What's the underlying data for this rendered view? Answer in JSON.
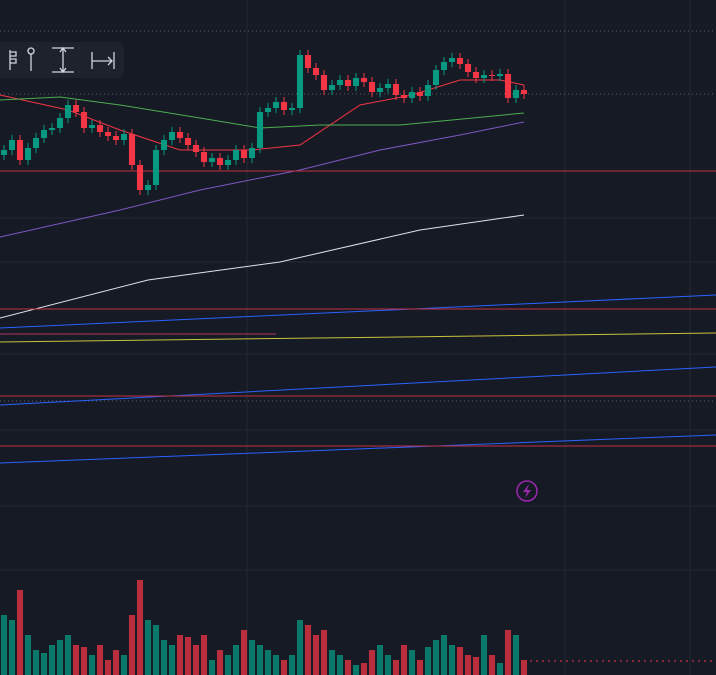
{
  "chart_data": {
    "type": "candlestick",
    "ylim": [
      0,
      675
    ],
    "xlim": [
      -0.5,
      89
    ],
    "up_color": "#089981",
    "down_color": "#f23645",
    "open": [
      520,
      525,
      535,
      515,
      527,
      537,
      545,
      547,
      557,
      570,
      563,
      547,
      550,
      543,
      539,
      535,
      541,
      510,
      485,
      490,
      525,
      535,
      543,
      537,
      530,
      523,
      513,
      517,
      510,
      515,
      525,
      517,
      527,
      563,
      567,
      573,
      565,
      567,
      620,
      607,
      600,
      585,
      590,
      595,
      589,
      597,
      593,
      583,
      587,
      591,
      580,
      577,
      583,
      579,
      590,
      605,
      613,
      617,
      611,
      603,
      597,
      600,
      599,
      601,
      577,
      585
    ],
    "high": [
      530,
      540,
      540,
      532,
      542,
      550,
      552,
      562,
      575,
      575,
      568,
      555,
      555,
      548,
      544,
      546,
      546,
      515,
      495,
      530,
      540,
      548,
      548,
      542,
      535,
      528,
      522,
      522,
      520,
      530,
      530,
      532,
      568,
      572,
      578,
      578,
      572,
      625,
      625,
      612,
      605,
      595,
      600,
      600,
      602,
      602,
      598,
      592,
      596,
      596,
      585,
      588,
      588,
      595,
      610,
      618,
      622,
      622,
      616,
      608,
      605,
      605,
      606,
      606,
      590,
      590
    ],
    "low": [
      515,
      520,
      510,
      510,
      522,
      532,
      540,
      542,
      552,
      558,
      542,
      542,
      538,
      534,
      530,
      530,
      505,
      480,
      480,
      485,
      520,
      530,
      532,
      525,
      518,
      508,
      508,
      505,
      505,
      510,
      512,
      512,
      522,
      558,
      562,
      560,
      560,
      562,
      602,
      595,
      580,
      580,
      585,
      584,
      584,
      588,
      578,
      578,
      582,
      575,
      572,
      572,
      574,
      574,
      585,
      600,
      608,
      606,
      598,
      592,
      592,
      594,
      594,
      572,
      572,
      576
    ],
    "close": [
      525,
      535,
      515,
      527,
      537,
      545,
      547,
      557,
      570,
      563,
      547,
      550,
      543,
      539,
      535,
      541,
      510,
      485,
      490,
      525,
      535,
      543,
      537,
      530,
      523,
      513,
      517,
      510,
      515,
      525,
      517,
      527,
      563,
      567,
      573,
      565,
      567,
      620,
      607,
      600,
      585,
      590,
      595,
      589,
      597,
      593,
      583,
      587,
      591,
      580,
      577,
      583,
      579,
      590,
      605,
      613,
      617,
      611,
      603,
      597,
      600,
      599,
      601,
      577,
      585,
      581
    ],
    "volume": [
      60,
      55,
      85,
      40,
      25,
      22,
      30,
      35,
      40,
      30,
      28,
      20,
      30,
      15,
      25,
      20,
      60,
      95,
      55,
      50,
      35,
      30,
      40,
      38,
      30,
      40,
      15,
      25,
      20,
      30,
      45,
      35,
      30,
      25,
      20,
      15,
      20,
      55,
      50,
      40,
      45,
      25,
      20,
      15,
      10,
      12,
      25,
      30,
      20,
      15,
      30,
      25,
      15,
      28,
      35,
      40,
      30,
      28,
      20,
      18,
      40,
      20,
      12,
      45,
      40,
      15
    ],
    "overlays": [
      {
        "color": "#f23645",
        "x": [
          -0.5,
          8,
          14.5,
          22,
          31,
          37,
          44.5,
          51,
          57,
          62,
          65
        ],
        "values": [
          580,
          565,
          545,
          525,
          525,
          530,
          570,
          580,
          595,
          595,
          590
        ]
      },
      {
        "color": "#4caf50",
        "x": [
          -0.5,
          7,
          14.5,
          24.5,
          32,
          39.5,
          49.5,
          56,
          65
        ],
        "values": [
          575,
          578,
          570,
          557,
          547,
          550,
          550,
          555,
          562
        ]
      },
      {
        "color": "#7e57c2",
        "x": [
          -0.5,
          14.5,
          24.5,
          37,
          47,
          57,
          65
        ],
        "values": [
          438,
          465,
          485,
          505,
          525,
          540,
          553
        ]
      },
      {
        "color": "#e0e3eb",
        "x": [
          -0.5,
          18,
          34.5,
          52,
          65
        ],
        "values": [
          357,
          395,
          413,
          445,
          460
        ]
      },
      {
        "color": "#2962ff",
        "x": [
          -0.5,
          89
        ],
        "values": [
          347,
          380
        ]
      },
      {
        "color": "#2962ff",
        "x": [
          -0.5,
          89
        ],
        "values": [
          270,
          308
        ]
      },
      {
        "color": "#2962ff",
        "x": [
          -0.5,
          89
        ],
        "values": [
          212,
          240
        ]
      },
      {
        "color": "#c9c23a",
        "x": [
          -0.5,
          89
        ],
        "values": [
          333,
          342
        ]
      },
      {
        "color": "#b2365a",
        "x": [
          -0.5,
          34
        ],
        "values": [
          341,
          341
        ]
      },
      {
        "color": "#c2303f",
        "x": [
          -0.5,
          89
        ],
        "values": [
          504,
          504
        ]
      },
      {
        "color": "#c2303f",
        "x": [
          -0.5,
          89
        ],
        "values": [
          366,
          366
        ]
      },
      {
        "color": "#c2303f",
        "x": [
          -0.5,
          89
        ],
        "values": [
          279,
          279
        ]
      },
      {
        "color": "#c2303f",
        "x": [
          -0.5,
          89
        ],
        "values": [
          229,
          229
        ]
      }
    ]
  }
}
